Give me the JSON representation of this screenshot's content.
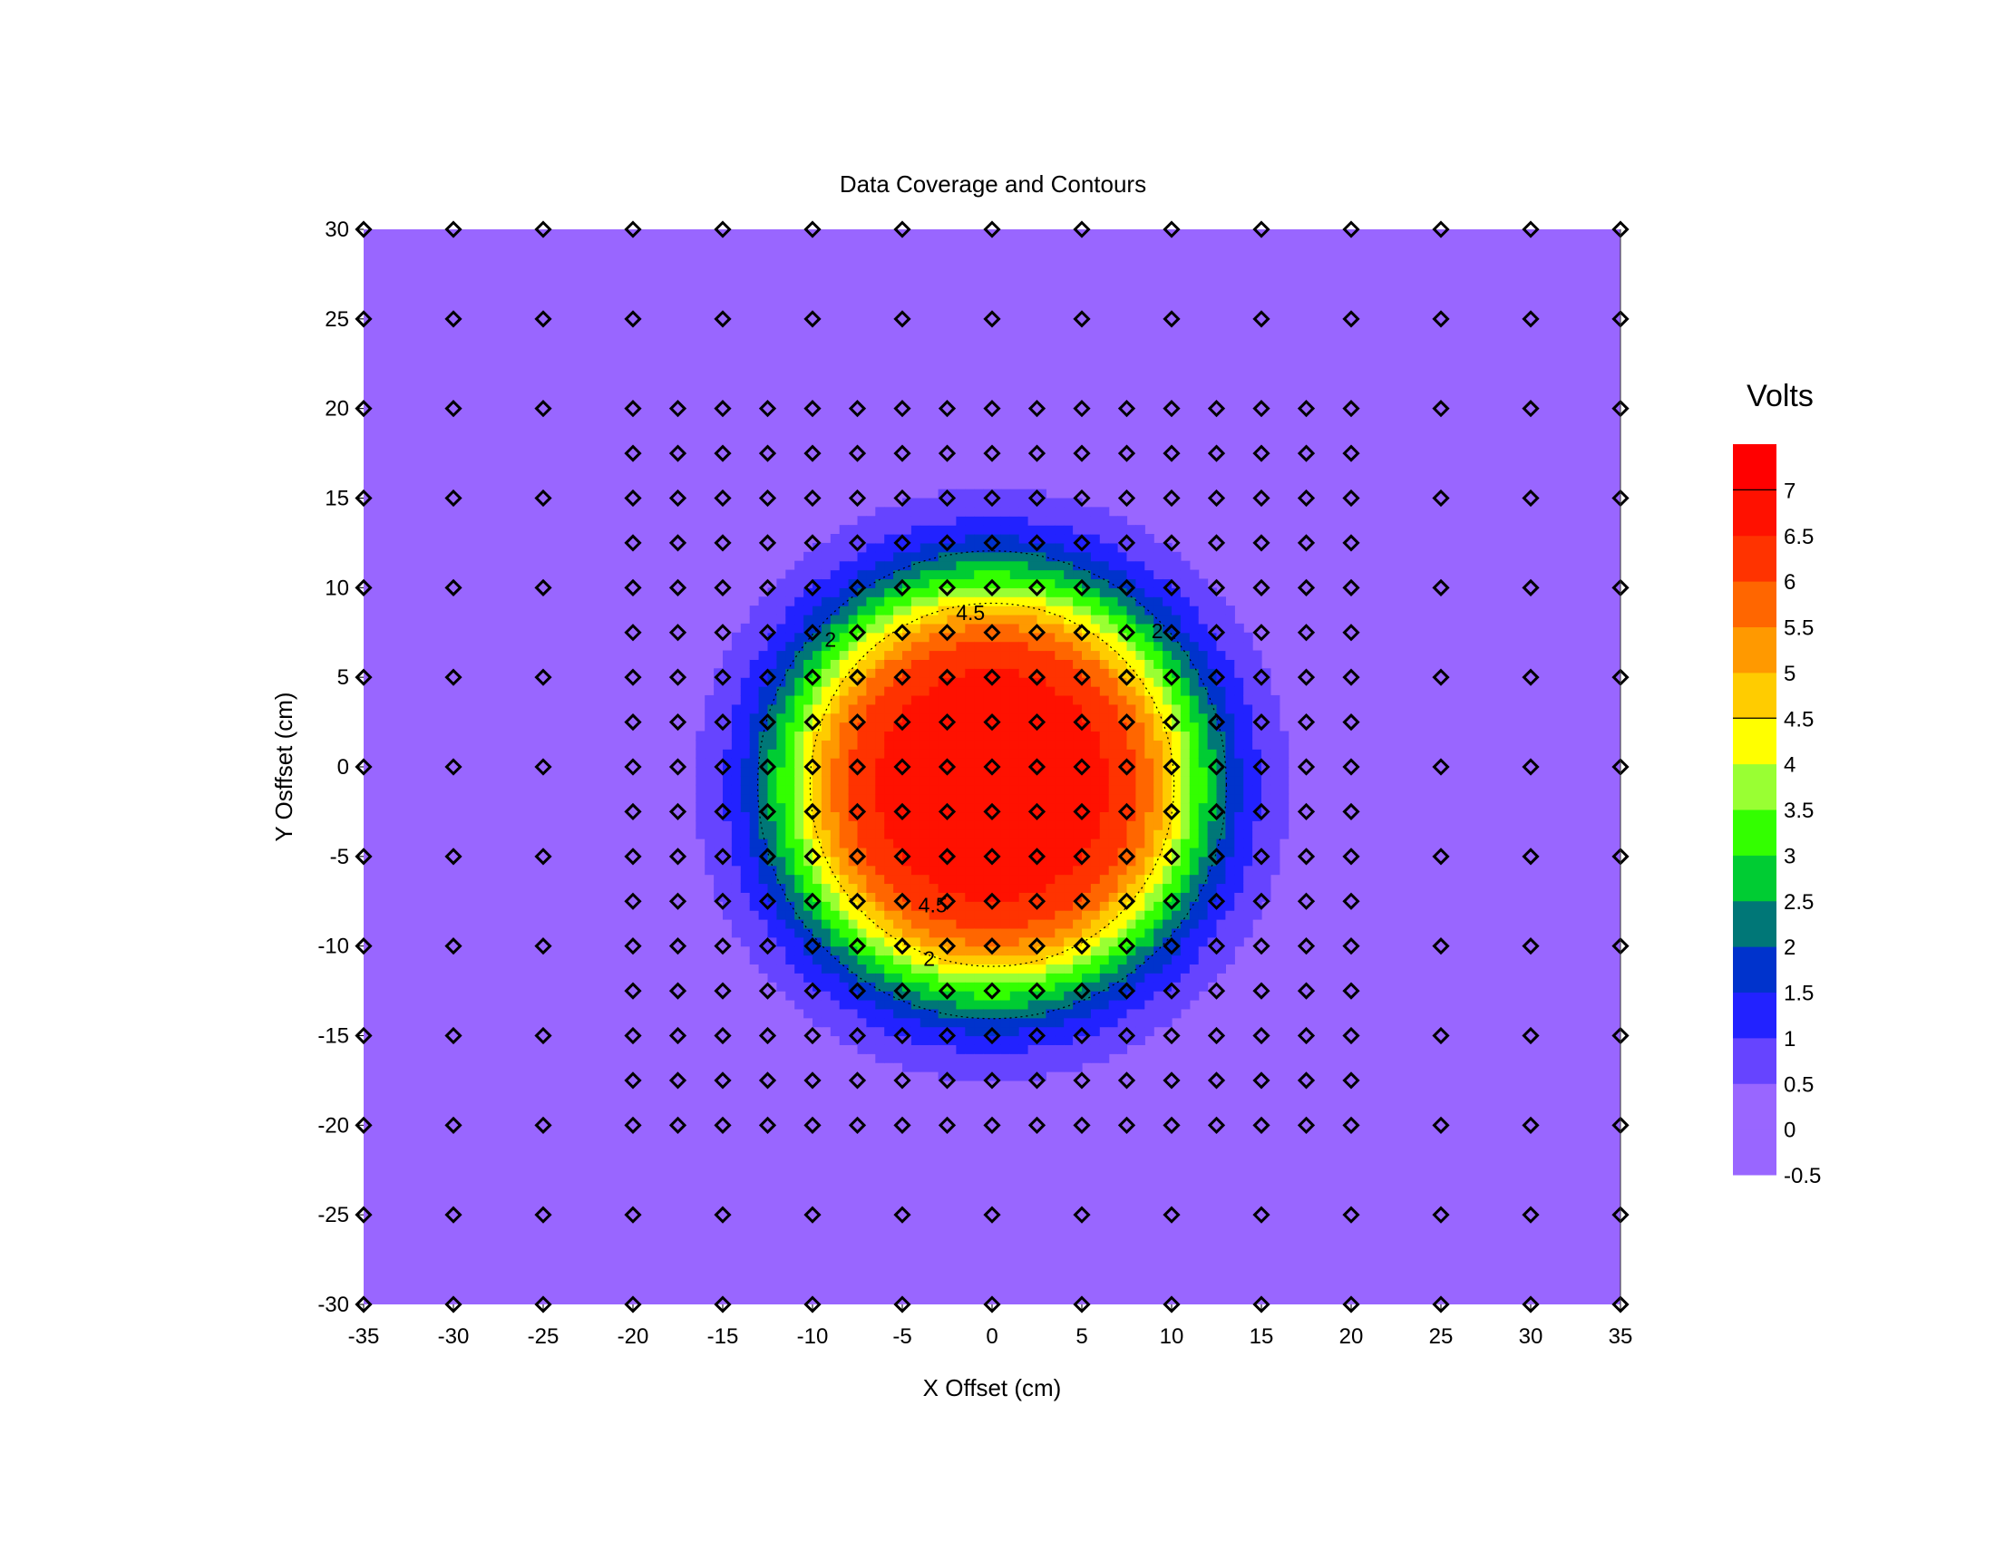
{
  "chart_data": {
    "type": "heatmap",
    "title": "Data Coverage and Contours",
    "xlabel": "X Offset (cm)",
    "ylabel": "Y Osffset (cm)",
    "xlim": [
      -35,
      35
    ],
    "ylim": [
      -30,
      30
    ],
    "x_ticks": [
      -35,
      -30,
      -25,
      -20,
      -15,
      -10,
      -5,
      0,
      5,
      10,
      15,
      20,
      25,
      30,
      35
    ],
    "y_ticks": [
      30,
      25,
      20,
      15,
      10,
      5,
      0,
      -5,
      -10,
      -15,
      -20,
      -25,
      -30
    ],
    "colorbar": {
      "title": "Volts",
      "labels": [
        "7",
        "6.5",
        "6",
        "5.5",
        "5",
        "4.5",
        "4",
        "3.5",
        "3",
        "2.5",
        "2",
        "1.5",
        "1",
        "0.5",
        "0",
        "-0.5"
      ],
      "levels": [
        -0.5,
        0,
        0.5,
        1,
        1.5,
        2,
        2.5,
        3,
        3.5,
        4,
        4.5,
        5,
        5.5,
        6,
        6.5,
        7
      ],
      "max": 7.5,
      "colors": [
        "#9966ff",
        "#9966ff",
        "#6644ff",
        "#2222ff",
        "#0033cc",
        "#007777",
        "#00cc33",
        "#33ff00",
        "#99ff33",
        "#ffff00",
        "#ffcc00",
        "#ff9900",
        "#ff6600",
        "#ff3300",
        "#ff1100",
        "#ff0000"
      ]
    },
    "field": {
      "description": "",
      "center": [
        0,
        -1
      ],
      "peak_volts": 6.9,
      "half_radius": 11.5
    },
    "contour_labels": [
      {
        "text": "4.5",
        "x": -1.2,
        "y": 8.5
      },
      {
        "text": "4.5",
        "x": -3.3,
        "y": -7.8
      },
      {
        "text": "2",
        "x": -3.5,
        "y": -10.8
      },
      {
        "text": "2",
        "x": -9,
        "y": 7
      },
      {
        "text": "2",
        "x": 9.2,
        "y": 7.5
      }
    ],
    "sample_points": {
      "coarse_x": [
        -35,
        -30,
        -25,
        -20,
        -15,
        -10,
        -5,
        0,
        5,
        10,
        15,
        20,
        25,
        30,
        35
      ],
      "coarse_y": [
        30,
        -30
      ],
      "sparse_rows_y": [
        25,
        -25
      ],
      "sparse_rows_x": [
        -35,
        -30,
        -25,
        -20,
        -15,
        -10,
        -5,
        0,
        5,
        10,
        15,
        20,
        25,
        30,
        35
      ],
      "outer_x": [
        -35,
        -30,
        -25,
        25,
        30,
        35
      ],
      "outer_y": [
        20,
        15,
        10,
        5,
        0,
        -5,
        -10,
        -15,
        -20
      ],
      "dense_x_range": [
        -20,
        20
      ],
      "dense_y_range": [
        -20,
        20
      ],
      "dense_step": 2.5
    }
  }
}
